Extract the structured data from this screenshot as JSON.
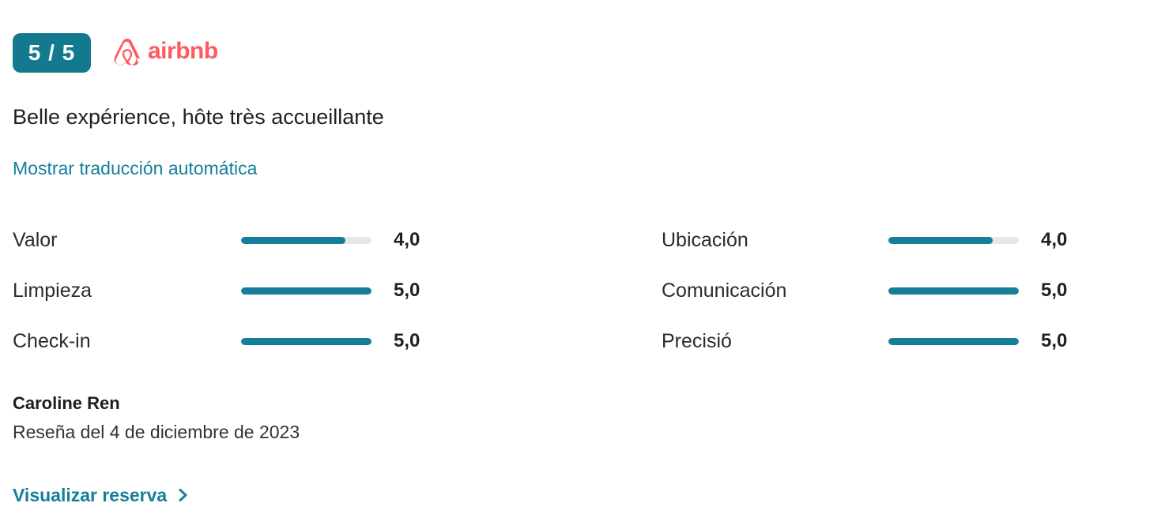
{
  "header": {
    "score_badge": "5 / 5",
    "channel_name": "airbnb"
  },
  "review": {
    "title": "Belle expérience, hôte très accueillante",
    "translation_link_label": "Mostrar traducción automática",
    "author": "Caroline Ren",
    "date_line": "Reseña del 4 de diciembre de 2023",
    "view_booking_label": "Visualizar reserva"
  },
  "ratings": {
    "max": 5,
    "columns": [
      [
        {
          "label": "Valor",
          "value": 4.0,
          "display": "4,0"
        },
        {
          "label": "Limpieza",
          "value": 5.0,
          "display": "5,0"
        },
        {
          "label": "Check-in",
          "value": 5.0,
          "display": "5,0"
        }
      ],
      [
        {
          "label": "Ubicación",
          "value": 4.0,
          "display": "4,0"
        },
        {
          "label": "Comunicación",
          "value": 5.0,
          "display": "5,0"
        },
        {
          "label": "Precisió",
          "value": 5.0,
          "display": "5,0"
        }
      ]
    ]
  },
  "colors": {
    "badge_teal": "#12798E",
    "accent_teal": "#157E9B",
    "bar_track": "#E8E7E3",
    "airbnb_red": "#FF5A5F"
  }
}
